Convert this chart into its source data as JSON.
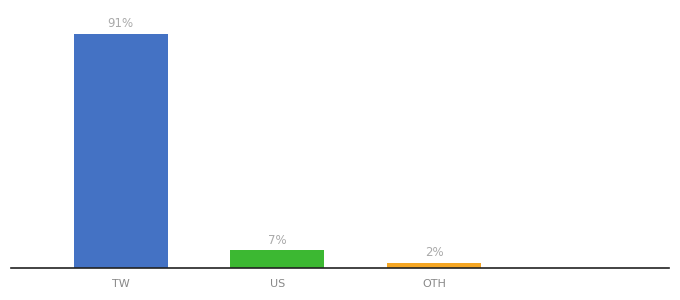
{
  "categories": [
    "TW",
    "US",
    "OTH"
  ],
  "values": [
    91,
    7,
    2
  ],
  "bar_colors": [
    "#4472c4",
    "#3cb832",
    "#f5a623"
  ],
  "labels": [
    "91%",
    "7%",
    "2%"
  ],
  "background_color": "#ffffff",
  "ylim": [
    0,
    100
  ],
  "bar_width": 0.6,
  "x_positions": [
    1,
    2,
    3
  ],
  "xlim": [
    0.3,
    4.5
  ],
  "tick_fontsize": 8,
  "label_fontsize": 8.5
}
